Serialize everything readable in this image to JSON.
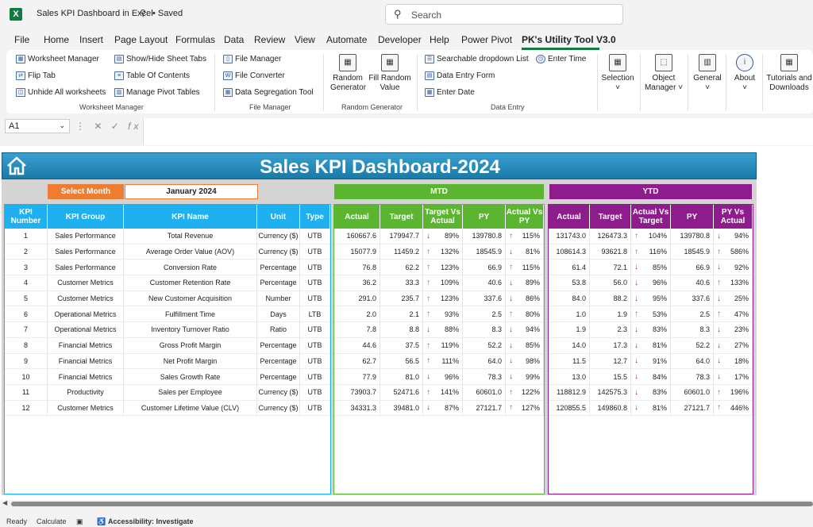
{
  "titlebar": {
    "title": "Sales KPI Dashboard in Excel",
    "saved": "• Saved",
    "search_placeholder": "Search"
  },
  "tabs": [
    "File",
    "Home",
    "Insert",
    "Page Layout",
    "Formulas",
    "Data",
    "Review",
    "View",
    "Automate",
    "Developer",
    "Help",
    "Power Pivot",
    "PK's Utility Tool V3.0"
  ],
  "ribbon": {
    "worksheet_manager": {
      "items": [
        "Worksheet Manager",
        "Flip Tab",
        "Unhide All worksheets",
        "Show/Hide Sheet Tabs",
        "Table Of Contents",
        "Manage Pivot Tables"
      ],
      "label": "Worksheet Manager"
    },
    "file_manager": {
      "items": [
        "File Manager",
        "File Converter",
        "Data Segregation Tool"
      ],
      "label": "File Manager"
    },
    "random_generator": {
      "items": [
        "Random Generator",
        "Fill Random Value"
      ],
      "label": "Random Generator"
    },
    "data_entry": {
      "items": [
        "Searchable dropdown List",
        "Data Entry Form",
        "Enter Date",
        "Enter Time"
      ],
      "label": "Data Entry"
    },
    "others": [
      "Selection",
      "Object Manager",
      "General",
      "About",
      "Tutorials and Downloads"
    ]
  },
  "formula_bar": {
    "cell": "A1"
  },
  "dashboard": {
    "title": "Sales KPI Dashboard-2024",
    "select_month_label": "Select Month",
    "month": "January 2024",
    "mtd_label": "MTD",
    "ytd_label": "YTD",
    "left_headers": [
      "KPI Number",
      "KPI Group",
      "KPI Name",
      "Unit",
      "Type"
    ],
    "mtd_headers": [
      "Actual",
      "Target",
      "Target Vs Actual",
      "PY",
      "Actual Vs PY"
    ],
    "ytd_headers": [
      "Actual",
      "Target",
      "Actual Vs Target",
      "PY",
      "PY Vs Actual"
    ],
    "rows": [
      {
        "num": "1",
        "group": "Sales Performance",
        "name": "Total Revenue",
        "unit": "Currency ($)",
        "type": "UTB",
        "m_act": "160667.6",
        "m_tgt": "179947.7",
        "m_tva_dir": "down",
        "m_tva": "89%",
        "m_py": "139780.8",
        "m_avp_dir": "up",
        "m_avp": "115%",
        "y_act": "131743.0",
        "y_tgt": "126473.3",
        "y_avt_dir": "up",
        "y_avt": "104%",
        "y_py": "139780.8",
        "y_pva_dir": "down",
        "y_pva": "94%"
      },
      {
        "num": "2",
        "group": "Sales Performance",
        "name": "Average Order Value (AOV)",
        "unit": "Currency ($)",
        "type": "UTB",
        "m_act": "15077.9",
        "m_tgt": "11459.2",
        "m_tva_dir": "up",
        "m_tva": "132%",
        "m_py": "18545.9",
        "m_avp_dir": "down",
        "m_avp": "81%",
        "y_act": "108614.3",
        "y_tgt": "93621.8",
        "y_avt_dir": "up",
        "y_avt": "116%",
        "y_py": "18545.9",
        "y_pva_dir": "up",
        "y_pva": "586%"
      },
      {
        "num": "3",
        "group": "Sales Performance",
        "name": "Conversion Rate",
        "unit": "Percentage",
        "type": "UTB",
        "m_act": "76.8",
        "m_tgt": "62.2",
        "m_tva_dir": "up",
        "m_tva": "123%",
        "m_py": "66.9",
        "m_avp_dir": "up",
        "m_avp": "115%",
        "y_act": "61.4",
        "y_tgt": "72.1",
        "y_avt_dir": "down",
        "y_avt": "85%",
        "y_py": "66.9",
        "y_pva_dir": "down",
        "y_pva": "92%"
      },
      {
        "num": "4",
        "group": "Customer Metrics",
        "name": "Customer Retention Rate",
        "unit": "Percentage",
        "type": "UTB",
        "m_act": "36.2",
        "m_tgt": "33.3",
        "m_tva_dir": "up",
        "m_tva": "109%",
        "m_py": "40.6",
        "m_avp_dir": "down",
        "m_avp": "89%",
        "y_act": "53.8",
        "y_tgt": "56.0",
        "y_avt_dir": "down",
        "y_avt": "96%",
        "y_py": "40.6",
        "y_pva_dir": "up",
        "y_pva": "133%"
      },
      {
        "num": "5",
        "group": "Customer Metrics",
        "name": "New Customer Acquisition",
        "unit": "Number",
        "type": "UTB",
        "m_act": "291.0",
        "m_tgt": "235.7",
        "m_tva_dir": "up",
        "m_tva": "123%",
        "m_py": "337.6",
        "m_avp_dir": "down",
        "m_avp": "86%",
        "y_act": "84.0",
        "y_tgt": "88.2",
        "y_avt_dir": "down",
        "y_avt": "95%",
        "y_py": "337.6",
        "y_pva_dir": "down",
        "y_pva": "25%"
      },
      {
        "num": "6",
        "group": "Operational Metrics",
        "name": "Fulfillment Time",
        "unit": "Days",
        "type": "LTB",
        "m_act": "2.0",
        "m_tgt": "2.1",
        "m_tva_dir": "up",
        "m_tva": "93%",
        "m_py": "2.5",
        "m_avp_dir": "up",
        "m_avp": "80%",
        "y_act": "1.0",
        "y_tgt": "1.9",
        "y_avt_dir": "up",
        "y_avt": "53%",
        "y_py": "2.5",
        "y_pva_dir": "up",
        "y_pva": "47%"
      },
      {
        "num": "7",
        "group": "Operational Metrics",
        "name": "Inventory Turnover Ratio",
        "unit": "Ratio",
        "type": "UTB",
        "m_act": "7.8",
        "m_tgt": "8.8",
        "m_tva_dir": "down",
        "m_tva": "88%",
        "m_py": "8.3",
        "m_avp_dir": "down",
        "m_avp": "94%",
        "y_act": "1.9",
        "y_tgt": "2.3",
        "y_avt_dir": "down",
        "y_avt": "83%",
        "y_py": "8.3",
        "y_pva_dir": "down",
        "y_pva": "23%"
      },
      {
        "num": "8",
        "group": "Financial Metrics",
        "name": "Gross Profit Margin",
        "unit": "Percentage",
        "type": "UTB",
        "m_act": "44.6",
        "m_tgt": "37.5",
        "m_tva_dir": "up",
        "m_tva": "119%",
        "m_py": "52.2",
        "m_avp_dir": "down",
        "m_avp": "85%",
        "y_act": "14.0",
        "y_tgt": "17.3",
        "y_avt_dir": "down",
        "y_avt": "81%",
        "y_py": "52.2",
        "y_pva_dir": "down",
        "y_pva": "27%"
      },
      {
        "num": "9",
        "group": "Financial Metrics",
        "name": "Net Profit Margin",
        "unit": "Percentage",
        "type": "UTB",
        "m_act": "62.7",
        "m_tgt": "56.5",
        "m_tva_dir": "up",
        "m_tva": "111%",
        "m_py": "64.0",
        "m_avp_dir": "down",
        "m_avp": "98%",
        "y_act": "11.5",
        "y_tgt": "12.7",
        "y_avt_dir": "down",
        "y_avt": "91%",
        "y_py": "64.0",
        "y_pva_dir": "down",
        "y_pva": "18%"
      },
      {
        "num": "10",
        "group": "Financial Metrics",
        "name": "Sales Growth Rate",
        "unit": "Percentage",
        "type": "UTB",
        "m_act": "77.9",
        "m_tgt": "81.0",
        "m_tva_dir": "down",
        "m_tva": "96%",
        "m_py": "78.3",
        "m_avp_dir": "down",
        "m_avp": "99%",
        "y_act": "13.0",
        "y_tgt": "15.5",
        "y_avt_dir": "down",
        "y_avt": "84%",
        "y_py": "78.3",
        "y_pva_dir": "down",
        "y_pva": "17%"
      },
      {
        "num": "11",
        "group": "Productivity",
        "name": "Sales per Employee",
        "unit": "Currency ($)",
        "type": "UTB",
        "m_act": "73903.7",
        "m_tgt": "52471.6",
        "m_tva_dir": "up",
        "m_tva": "141%",
        "m_py": "60601.0",
        "m_avp_dir": "up",
        "m_avp": "122%",
        "y_act": "118812.9",
        "y_tgt": "142575.3",
        "y_avt_dir": "down",
        "y_avt": "83%",
        "y_py": "60601.0",
        "y_pva_dir": "up",
        "y_pva": "196%"
      },
      {
        "num": "12",
        "group": "Customer Metrics",
        "name": "Customer Lifetime Value (CLV)",
        "unit": "Currency ($)",
        "type": "UTB",
        "m_act": "34331.3",
        "m_tgt": "39481.0",
        "m_tva_dir": "down",
        "m_tva": "87%",
        "m_py": "27121.7",
        "m_avp_dir": "up",
        "m_avp": "127%",
        "y_act": "120855.5",
        "y_tgt": "149860.8",
        "y_avt_dir": "down",
        "y_avt": "81%",
        "y_py": "27121.7",
        "y_pva_dir": "up",
        "y_pva": "446%"
      }
    ]
  },
  "status": {
    "ready": "Ready",
    "calculate": "Calculate",
    "accessibility": "Accessibility: Investigate"
  }
}
